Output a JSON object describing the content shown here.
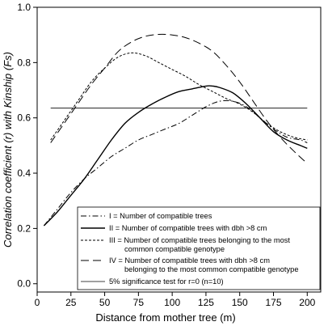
{
  "chart_data": {
    "type": "line",
    "title": "",
    "xlabel": "Distance from mother tree (m)",
    "ylabel": "Correlation coefficient (r) with Kinship (Fs)",
    "xlim": [
      0,
      210
    ],
    "ylim": [
      -0.03,
      1.0
    ],
    "x_ticks": [
      0,
      25,
      50,
      75,
      100,
      125,
      150,
      175,
      200
    ],
    "y_ticks": [
      0.0,
      0.2,
      0.4,
      0.6,
      0.8,
      1.0
    ],
    "y_tick_labels": [
      "0.0",
      "0.2",
      "0.4",
      "0.6",
      "0.8",
      "1.0"
    ],
    "grid": false,
    "legend_position": "bottom-right",
    "series": [
      {
        "id": "I",
        "name": "I    = Number of compatible trees",
        "style": "dash-dot",
        "x": [
          5,
          15,
          25,
          35,
          45,
          55,
          65,
          75,
          85,
          95,
          105,
          115,
          125,
          135,
          145,
          155,
          165,
          175,
          185,
          195,
          200
        ],
        "y": [
          0.21,
          0.27,
          0.33,
          0.38,
          0.42,
          0.46,
          0.49,
          0.52,
          0.54,
          0.56,
          0.58,
          0.61,
          0.64,
          0.66,
          0.66,
          0.64,
          0.6,
          0.56,
          0.53,
          0.52,
          0.51
        ]
      },
      {
        "id": "II",
        "name": "II   = Number of compatible trees with dbh >8 cm",
        "style": "solid",
        "x": [
          5,
          15,
          25,
          35,
          45,
          55,
          65,
          75,
          85,
          95,
          105,
          115,
          125,
          130,
          135,
          145,
          155,
          165,
          175,
          185,
          195,
          200
        ],
        "y": [
          0.21,
          0.26,
          0.32,
          0.38,
          0.45,
          0.52,
          0.58,
          0.62,
          0.65,
          0.675,
          0.695,
          0.705,
          0.715,
          0.715,
          0.71,
          0.69,
          0.65,
          0.6,
          0.55,
          0.52,
          0.5,
          0.49
        ]
      },
      {
        "id": "III",
        "name": "III  = Number of compatible trees belonging to the most",
        "name_line2": "common compatible genotype",
        "style": "short-dash",
        "x": [
          10,
          20,
          30,
          40,
          50,
          60,
          70,
          80,
          90,
          100,
          110,
          120,
          130,
          140,
          150,
          160,
          170,
          180,
          190,
          200
        ],
        "y": [
          0.52,
          0.59,
          0.66,
          0.73,
          0.78,
          0.82,
          0.835,
          0.825,
          0.8,
          0.775,
          0.75,
          0.72,
          0.695,
          0.67,
          0.65,
          0.62,
          0.58,
          0.55,
          0.53,
          0.52
        ]
      },
      {
        "id": "IV",
        "name": "IV  = Number of compatible trees with dbh >8 cm",
        "name_line2": "belonging to the most common compatible genotype",
        "style": "long-dash",
        "x": [
          10,
          20,
          30,
          40,
          50,
          60,
          70,
          80,
          90,
          100,
          110,
          120,
          130,
          140,
          150,
          160,
          170,
          180,
          190,
          200
        ],
        "y": [
          0.51,
          0.58,
          0.65,
          0.72,
          0.78,
          0.84,
          0.875,
          0.895,
          0.902,
          0.9,
          0.89,
          0.87,
          0.84,
          0.79,
          0.73,
          0.66,
          0.59,
          0.53,
          0.48,
          0.435
        ]
      },
      {
        "id": "sig",
        "name": "5% significance test for r=0 (n=10)",
        "style": "thin-solid",
        "x": [
          10,
          200
        ],
        "y": [
          0.635,
          0.635
        ]
      }
    ]
  },
  "colors": {
    "line": "#000000",
    "background": "#ffffff"
  }
}
